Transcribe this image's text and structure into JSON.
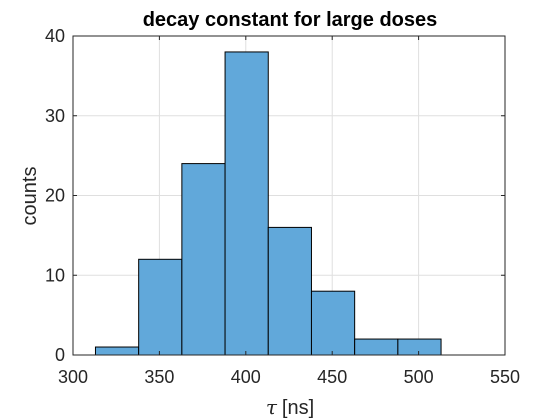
{
  "chart_data": {
    "type": "bar",
    "title": "decay constant for large doses",
    "xlabel_symbol": "τ",
    "xlabel_unit": "[ns]",
    "ylabel": "counts",
    "xlim": [
      300,
      550
    ],
    "ylim": [
      0,
      40
    ],
    "xticks": [
      300,
      350,
      400,
      450,
      500,
      550
    ],
    "yticks": [
      0,
      10,
      20,
      30,
      40
    ],
    "grid": true,
    "bar_color": "#61a8da",
    "bar_edge_color": "#000000",
    "bins": [
      {
        "from": 313,
        "to": 338,
        "count": 1
      },
      {
        "from": 338,
        "to": 363,
        "count": 12
      },
      {
        "from": 363,
        "to": 388,
        "count": 24
      },
      {
        "from": 388,
        "to": 413,
        "count": 38
      },
      {
        "from": 413,
        "to": 438,
        "count": 16
      },
      {
        "from": 438,
        "to": 463,
        "count": 8
      },
      {
        "from": 463,
        "to": 488,
        "count": 2
      },
      {
        "from": 488,
        "to": 513,
        "count": 2
      }
    ]
  }
}
